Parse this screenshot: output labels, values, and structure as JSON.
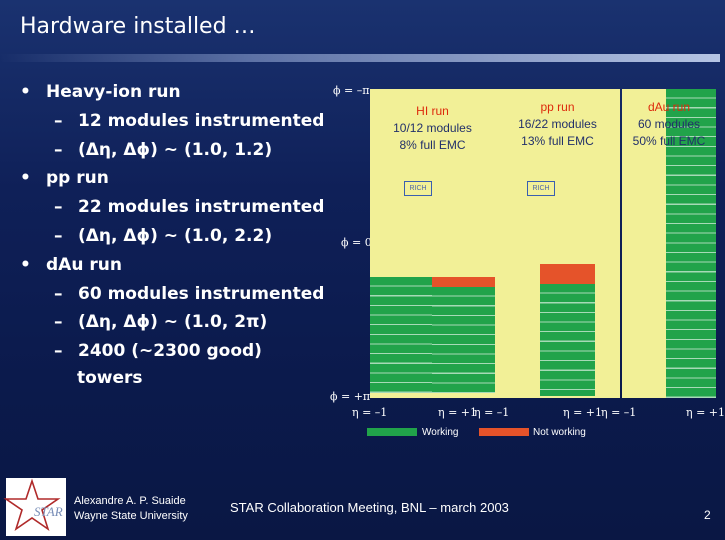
{
  "slide": {
    "title": "Hardware installed …",
    "bullets": [
      {
        "marker": "•",
        "text": "Heavy-ion run",
        "subs": [
          "12 modules instrumented",
          "(Δη, Δϕ) ~ (1.0, 1.2)"
        ]
      },
      {
        "marker": "•",
        "text": "pp run",
        "subs": [
          "22 modules instrumented",
          "(Δη, Δϕ) ~ (1.0, 2.2)"
        ]
      },
      {
        "marker": "•",
        "text": "dAu run",
        "subs": [
          "60 modules instrumented",
          "(Δη, Δϕ) ~ (1.0, 2π)",
          "2400 (~2300 good)"
        ],
        "continuation": "towers"
      }
    ],
    "sub_marker": "–"
  },
  "figure": {
    "phi_labels": [
      "ϕ = –π",
      "ϕ = 0",
      "ϕ = +π"
    ],
    "eta_labels": [
      "η = –1",
      "η = +1",
      "η = –1",
      "η = +1",
      "η = –1",
      "η = +1"
    ],
    "panels": [
      {
        "title": "HI run",
        "lines": [
          "10/12 modules",
          "8% full EMC"
        ],
        "rich": "RICH"
      },
      {
        "title": "pp run",
        "lines": [
          "16/22 modules",
          "13% full EMC"
        ],
        "rich": "RICH"
      },
      {
        "title": "dAu run",
        "lines": [
          "60 modules",
          "50% full EMC"
        ]
      }
    ],
    "legend": {
      "working": "Working",
      "not_working": "Not working"
    },
    "colors": {
      "working": "#21a34a",
      "not_working": "#e5532a",
      "panel": "#f2f097",
      "title_text": "#dd2a0c"
    }
  },
  "footer": {
    "logo_text": "STAR",
    "author": "Alexandre A. P. Suaide",
    "affiliation": "Wayne State University",
    "meeting": "STAR Collaboration Meeting, BNL – march 2003",
    "page": "2"
  }
}
